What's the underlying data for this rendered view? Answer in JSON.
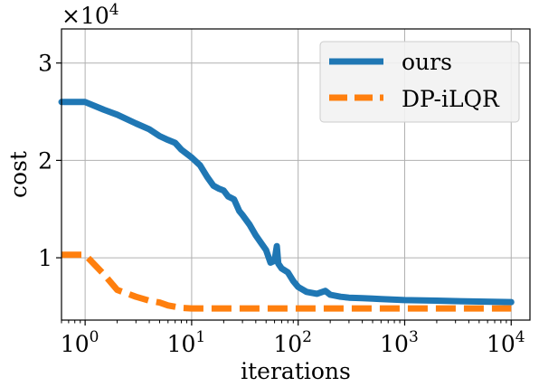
{
  "chart_data": {
    "type": "line",
    "xlabel": "iterations",
    "ylabel": "cost",
    "xscale": "log",
    "xlim": [
      0.6,
      15000
    ],
    "ylim": [
      3600,
      33500
    ],
    "offset_text": {
      "base": "×10",
      "exp": "4"
    },
    "grid": true,
    "legend_position": "top-right",
    "x_ticks": [
      {
        "value": 1,
        "base": "10",
        "exp": "0"
      },
      {
        "value": 10,
        "base": "10",
        "exp": "1"
      },
      {
        "value": 100,
        "base": "10",
        "exp": "2"
      },
      {
        "value": 1000,
        "base": "10",
        "exp": "3"
      },
      {
        "value": 10000,
        "base": "10",
        "exp": "4"
      }
    ],
    "y_ticks": [
      {
        "value": 10000,
        "label": "1"
      },
      {
        "value": 20000,
        "label": "2"
      },
      {
        "value": 30000,
        "label": "3"
      }
    ],
    "series": [
      {
        "name": "ours",
        "color": "#1f77b4",
        "style": "solid",
        "points": [
          [
            0.6,
            26000
          ],
          [
            1,
            26000
          ],
          [
            1.5,
            25200
          ],
          [
            2,
            24700
          ],
          [
            3,
            23800
          ],
          [
            4,
            23200
          ],
          [
            5,
            22500
          ],
          [
            6,
            22100
          ],
          [
            7,
            21800
          ],
          [
            8,
            21100
          ],
          [
            10,
            20300
          ],
          [
            12,
            19500
          ],
          [
            14,
            18300
          ],
          [
            16,
            17400
          ],
          [
            18,
            17100
          ],
          [
            20,
            16900
          ],
          [
            22,
            16300
          ],
          [
            25,
            16000
          ],
          [
            28,
            14800
          ],
          [
            30,
            14400
          ],
          [
            35,
            13400
          ],
          [
            40,
            12300
          ],
          [
            45,
            11500
          ],
          [
            50,
            10800
          ],
          [
            55,
            9500
          ],
          [
            60,
            9700
          ],
          [
            63,
            11200
          ],
          [
            65,
            9400
          ],
          [
            70,
            8900
          ],
          [
            80,
            8500
          ],
          [
            90,
            7600
          ],
          [
            100,
            7000
          ],
          [
            120,
            6500
          ],
          [
            150,
            6300
          ],
          [
            180,
            6600
          ],
          [
            200,
            6200
          ],
          [
            250,
            6000
          ],
          [
            300,
            5900
          ],
          [
            400,
            5850
          ],
          [
            500,
            5800
          ],
          [
            600,
            5750
          ],
          [
            800,
            5700
          ],
          [
            1000,
            5650
          ],
          [
            2000,
            5600
          ],
          [
            3000,
            5550
          ],
          [
            5000,
            5500
          ],
          [
            10000,
            5450
          ]
        ]
      },
      {
        "name": "DP-iLQR",
        "color": "#ff7f0e",
        "style": "dashed",
        "points": [
          [
            0.6,
            10300
          ],
          [
            1,
            10300
          ],
          [
            1.5,
            8300
          ],
          [
            2,
            6700
          ],
          [
            3,
            6000
          ],
          [
            4,
            5600
          ],
          [
            5,
            5400
          ],
          [
            6,
            5100
          ],
          [
            8,
            4850
          ],
          [
            10,
            4800
          ],
          [
            20,
            4800
          ],
          [
            100,
            4800
          ],
          [
            1000,
            4800
          ],
          [
            10000,
            4800
          ]
        ]
      }
    ]
  }
}
